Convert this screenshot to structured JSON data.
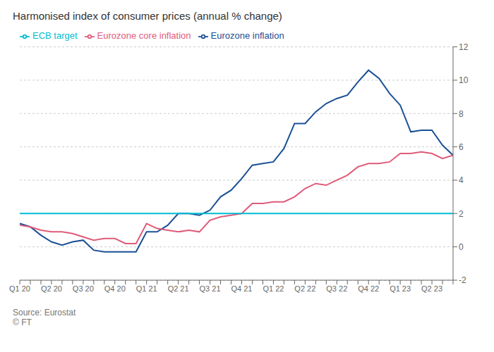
{
  "chart_data": {
    "type": "line",
    "title": "Harmonised index of consumer prices (annual % change)",
    "categories": [
      "Q1 20",
      null,
      null,
      "Q2 20",
      null,
      null,
      "Q3 20",
      null,
      null,
      "Q4 20",
      null,
      null,
      "Q1 21",
      null,
      null,
      "Q2 21",
      null,
      null,
      "Q3 21",
      null,
      null,
      "Q4 21",
      null,
      null,
      "Q1 22",
      null,
      null,
      "Q2 22",
      null,
      null,
      "Q3 22",
      null,
      null,
      "Q4 22",
      null,
      null,
      "Q1 23",
      null,
      null,
      "Q2 23",
      null,
      null
    ],
    "series": [
      {
        "name": "Eurozone inflation",
        "color": "#1a5096",
        "values": [
          1.4,
          1.2,
          0.7,
          0.3,
          0.1,
          0.3,
          0.4,
          -0.2,
          -0.3,
          -0.3,
          -0.3,
          -0.3,
          0.9,
          0.9,
          1.3,
          2.0,
          2.0,
          1.9,
          2.2,
          3.0,
          3.4,
          4.1,
          4.9,
          5.0,
          5.1,
          5.9,
          7.4,
          7.4,
          8.1,
          8.6,
          8.9,
          9.1,
          9.9,
          10.6,
          10.1,
          9.2,
          8.5,
          6.9,
          7.0,
          7.0,
          6.1,
          5.5
        ]
      },
      {
        "name": "Eurozone core inflation",
        "color": "#e05b7a",
        "values": [
          1.3,
          1.2,
          1.0,
          0.9,
          0.9,
          0.8,
          0.6,
          0.4,
          0.5,
          0.5,
          0.2,
          0.2,
          1.4,
          1.1,
          1.0,
          0.9,
          1.0,
          0.9,
          1.6,
          1.8,
          1.9,
          2.0,
          2.6,
          2.6,
          2.7,
          2.7,
          3.0,
          3.5,
          3.8,
          3.7,
          4.0,
          4.3,
          4.8,
          5.0,
          5.0,
          5.1,
          5.6,
          5.6,
          5.7,
          5.6,
          5.3,
          5.5
        ]
      },
      {
        "name": "ECB target",
        "color": "#00bcd4",
        "values": [
          2.0,
          2.0,
          2.0,
          2.0,
          2.0,
          2.0,
          2.0,
          2.0,
          2.0,
          2.0,
          2.0,
          2.0,
          2.0,
          2.0,
          2.0,
          2.0,
          2.0,
          2.0,
          2.0,
          2.0,
          2.0,
          2.0,
          2.0,
          2.0,
          2.0,
          2.0,
          2.0,
          2.0,
          2.0,
          2.0,
          2.0,
          2.0,
          2.0,
          2.0,
          2.0,
          2.0,
          2.0,
          2.0,
          2.0,
          2.0,
          2.0,
          2.0
        ]
      }
    ],
    "ylim": [
      -2,
      12
    ],
    "yticks": [
      -2,
      0,
      2,
      4,
      6,
      8,
      10,
      12
    ],
    "grid": "y",
    "legend": "upper left",
    "annotations": [
      "Source: Eurostat",
      "© FT"
    ]
  }
}
